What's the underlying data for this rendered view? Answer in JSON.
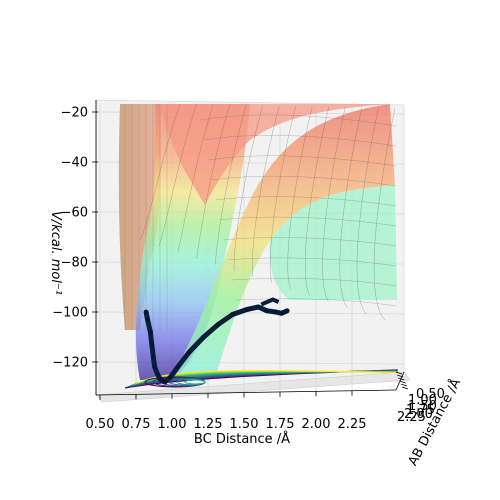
{
  "chart_data": {
    "type": "surface3d",
    "title": "",
    "xlabel": "BC Distance /Å",
    "ylabel": "AB Distance /Å",
    "zlabel": "V/kcal. mol⁻¹",
    "xlim": [
      0.5,
      2.5
    ],
    "ylim": [
      0.5,
      2.5
    ],
    "zlim": [
      -135,
      -18
    ],
    "x_ticks": [
      "0.50",
      "0.75",
      "1.00",
      "1.25",
      "1.50",
      "1.75",
      "2.00",
      "2.25"
    ],
    "y_ticks": [
      "0.50",
      "1.00",
      "1.50",
      "1.75",
      "2.00",
      "2.25"
    ],
    "z_ticks": [
      -20,
      -40,
      -60,
      -80,
      -100,
      -120
    ],
    "z_tick_labels": [
      "−20",
      "−40",
      "−60",
      "−80",
      "−100",
      "−120"
    ],
    "colormap": "jet",
    "contour_colormap": "viridis",
    "trajectory_color": "#0b1e3b",
    "trajectory": {
      "x": [
        0.82,
        0.83,
        0.85,
        0.86,
        0.87,
        0.88,
        0.9,
        0.92,
        0.95,
        0.99,
        1.04,
        1.12,
        1.22,
        1.32,
        1.42,
        1.52,
        1.6,
        1.66,
        1.72,
        1.76,
        1.8
      ],
      "z": [
        -100,
        -103,
        -108,
        -113,
        -118,
        -122,
        -125,
        -127,
        -128,
        -126,
        -122,
        -116,
        -110,
        -105,
        -101,
        -99,
        -98,
        -99.5,
        -100,
        -100.5,
        -99.5
      ]
    }
  }
}
